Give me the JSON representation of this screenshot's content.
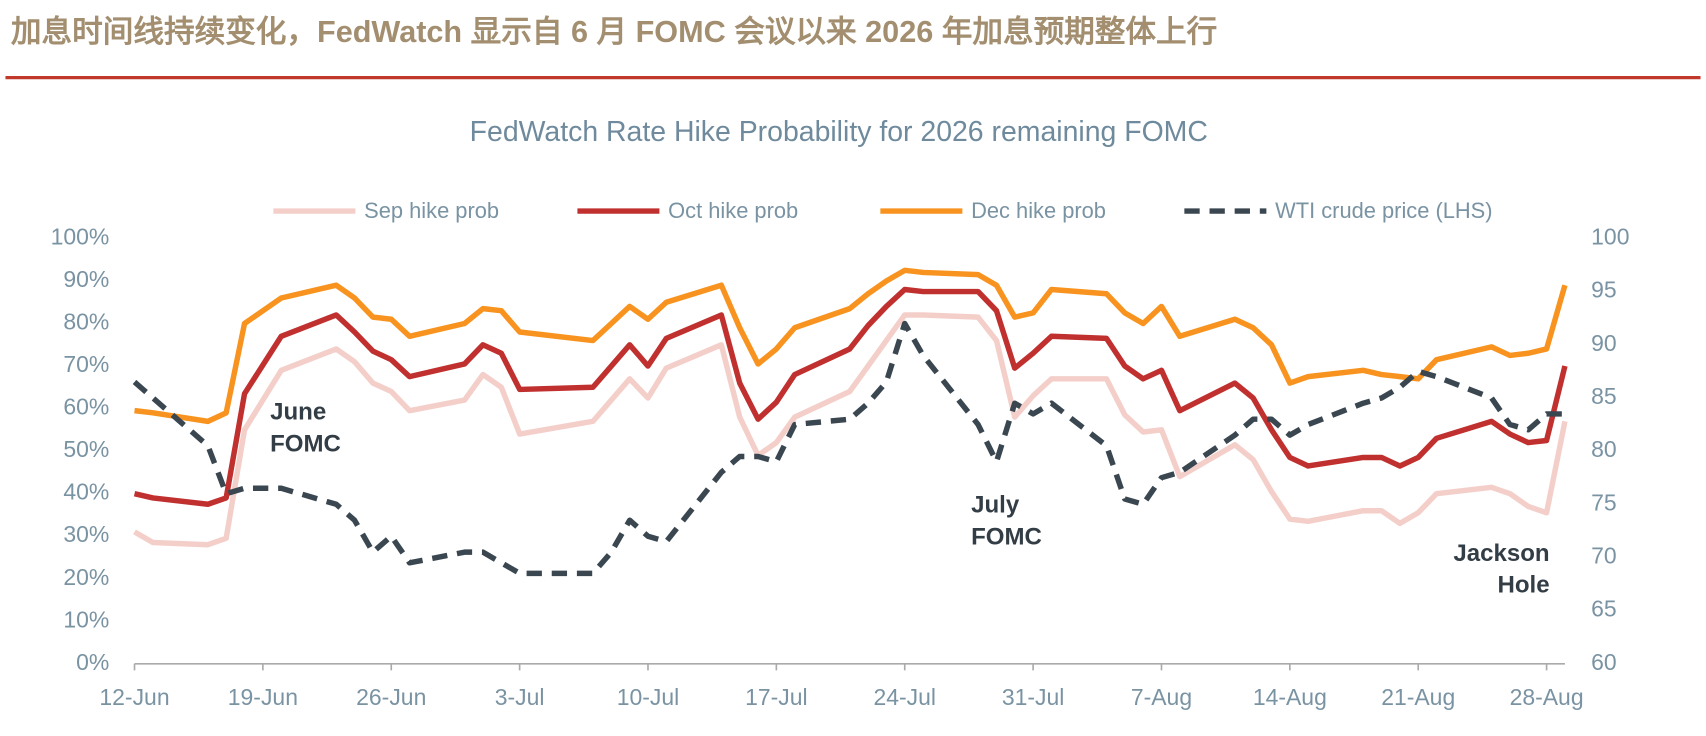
{
  "header": {
    "title": "加息时间线持续变化，FedWatch 显示自 6 月 FOMC 会议以来 2026 年加息预期整体上行"
  },
  "chart_data": {
    "type": "line",
    "title": "FedWatch Rate Hike Probability for 2026 remaining FOMC",
    "x": [
      "12-Jun",
      "13-Jun",
      "16-Jun",
      "17-Jun",
      "18-Jun",
      "20-Jun",
      "23-Jun",
      "24-Jun",
      "25-Jun",
      "26-Jun",
      "27-Jun",
      "30-Jun",
      "1-Jul",
      "2-Jul",
      "3-Jul",
      "7-Jul",
      "8-Jul",
      "9-Jul",
      "10-Jul",
      "11-Jul",
      "14-Jul",
      "15-Jul",
      "16-Jul",
      "17-Jul",
      "18-Jul",
      "21-Jul",
      "22-Jul",
      "23-Jul",
      "24-Jul",
      "25-Jul",
      "28-Jul",
      "29-Jul",
      "30-Jul",
      "31-Jul",
      "1-Aug",
      "4-Aug",
      "5-Aug",
      "6-Aug",
      "7-Aug",
      "8-Aug",
      "11-Aug",
      "12-Aug",
      "13-Aug",
      "14-Aug",
      "15-Aug",
      "18-Aug",
      "19-Aug",
      "20-Aug",
      "21-Aug",
      "22-Aug",
      "25-Aug",
      "26-Aug",
      "27-Aug",
      "28-Aug",
      "29-Aug"
    ],
    "xlim": [
      "12-Jun",
      "29-Aug"
    ],
    "xticks": [
      "12-Jun",
      "19-Jun",
      "26-Jun",
      "3-Jul",
      "10-Jul",
      "17-Jul",
      "24-Jul",
      "31-Jul",
      "7-Aug",
      "14-Aug",
      "21-Aug",
      "28-Aug"
    ],
    "ylim": [
      0,
      100
    ],
    "yticks": [
      {
        "value": 0,
        "label": "0%"
      },
      {
        "value": 10,
        "label": "10%"
      },
      {
        "value": 20,
        "label": "20%"
      },
      {
        "value": 30,
        "label": "30%"
      },
      {
        "value": 40,
        "label": "40%"
      },
      {
        "value": 50,
        "label": "50%"
      },
      {
        "value": 60,
        "label": "60%"
      },
      {
        "value": 70,
        "label": "70%"
      },
      {
        "value": 80,
        "label": "80%"
      },
      {
        "value": 90,
        "label": "90%"
      },
      {
        "value": 100,
        "label": "100%"
      }
    ],
    "y2lim": [
      60,
      100
    ],
    "y2ticks": [
      60,
      65,
      70,
      75,
      80,
      85,
      90,
      95,
      100
    ],
    "series": [
      {
        "name": "Sep hike prob",
        "color": "#f4cfca",
        "values": [
          31,
          28.5,
          28,
          29.5,
          55,
          69,
          74,
          71,
          66,
          64,
          59.5,
          62,
          68,
          65,
          54,
          57,
          62,
          67,
          62.5,
          69.5,
          75,
          58,
          49,
          52,
          58,
          64,
          70,
          76,
          82,
          82,
          81.5,
          76,
          58,
          63,
          67,
          67,
          58.5,
          54.5,
          55,
          44,
          51.5,
          48,
          40.5,
          34,
          33.5,
          36,
          36,
          33,
          35.5,
          40,
          41.5,
          40,
          37,
          35.5,
          57
        ]
      },
      {
        "name": "Oct hike prob",
        "color": "#c0302f",
        "values": [
          40,
          39,
          37.5,
          39,
          63.5,
          77,
          82,
          78,
          73.5,
          71.5,
          67.5,
          70.5,
          75,
          73,
          64.5,
          65,
          70,
          75,
          70,
          76.5,
          82,
          66,
          57.5,
          61.5,
          68,
          74,
          79.5,
          84,
          88,
          87.5,
          87.5,
          83,
          69.5,
          73,
          77,
          76.5,
          70,
          67,
          69,
          59.5,
          66,
          62.5,
          55,
          48.5,
          46.5,
          48.5,
          48.5,
          46.5,
          48.5,
          53,
          57,
          54,
          52,
          52.5,
          70
        ]
      },
      {
        "name": "Dec hike prob",
        "color": "#f7931e",
        "values": [
          59.5,
          59,
          57,
          59,
          80,
          86,
          89,
          86,
          81.5,
          81,
          77,
          80,
          83.5,
          83,
          78,
          76,
          80,
          84,
          81,
          85,
          89,
          79,
          70.5,
          74,
          79,
          83.5,
          87,
          90,
          92.5,
          92,
          91.5,
          89,
          81.5,
          82.5,
          88,
          87,
          82.5,
          80,
          84,
          77,
          81,
          79,
          75,
          66,
          67.5,
          69,
          68,
          67.5,
          67,
          71.5,
          74.5,
          72.5,
          73,
          74,
          89
        ]
      },
      {
        "name": "WTI crude price (LHS)",
        "color": "#3a4750",
        "axis": "y2",
        "dashed": true,
        "values": [
          86.5,
          85,
          80.5,
          76,
          76.5,
          76.5,
          75,
          73.5,
          70.5,
          72,
          69.5,
          70.5,
          70.5,
          69.5,
          68.5,
          68.5,
          70.5,
          73.5,
          72,
          71.5,
          78,
          79.5,
          79.5,
          79,
          82.5,
          83,
          84.5,
          86.5,
          92,
          89,
          82.5,
          79,
          84.5,
          83.5,
          84.5,
          80.5,
          75.5,
          75,
          77.5,
          78,
          81.5,
          83,
          83,
          81.5,
          82.5,
          84.5,
          85,
          86,
          87.5,
          87,
          85,
          82.5,
          82,
          83.5,
          83.5
        ]
      }
    ],
    "annotations": [
      [
        "June",
        "FOMC"
      ],
      [
        "July",
        "FOMC"
      ],
      [
        "Jackson",
        "Hole"
      ]
    ]
  }
}
